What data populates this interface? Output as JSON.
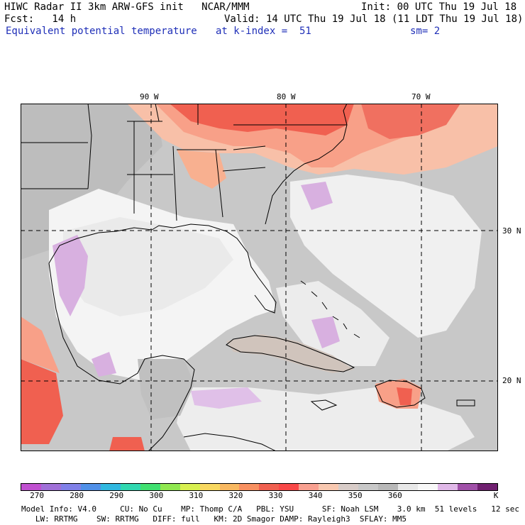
{
  "header": {
    "line1_left": "HIWC Radar II 3km ARW-GFS init   NCAR/MMM",
    "line1_right": "Init: 00 UTC Thu 19 Jul 18",
    "line2_left": "Fcst:   14 h",
    "line2_right": "Valid: 14 UTC Thu 19 Jul 18 (11 LDT Thu 19 Jul 18)",
    "field_name": "Equivalent potential temperature",
    "level": "at k-index =  51",
    "smoothing": "sm= 2"
  },
  "map": {
    "longitude_labels": [
      "90 W",
      "80 W",
      "70 W"
    ],
    "latitude_labels": [
      "30 N",
      "20 N"
    ]
  },
  "colorbar": {
    "colors": [
      "#c050d0",
      "#a070d8",
      "#8080e8",
      "#5090e8",
      "#30b8e0",
      "#30d8b0",
      "#40e070",
      "#90e850",
      "#d8f050",
      "#f8d860",
      "#f8b860",
      "#f89060",
      "#f06050",
      "#f84848",
      "#f8a090",
      "#f8c8b0",
      "#d8ccc8",
      "#c8c8c8",
      "#b8b8b8",
      "#e8e8e8",
      "#f8f8f8",
      "#e0b8e8",
      "#a050a8",
      "#702070"
    ],
    "tick_labels": [
      "270",
      "280",
      "290",
      "300",
      "310",
      "320",
      "330",
      "340",
      "350",
      "360",
      "K"
    ]
  },
  "footer": {
    "line1": "Model Info: V4.0     CU: No Cu    MP: Thomp C/A   PBL: YSU      SF: Noah LSM    3.0 km  51 levels   12 sec",
    "line2": "   LW: RRTMG    SW: RRTMG   DIFF: full   KM: 2D Smagor DAMP: Rayleigh3  SFLAY: MM5"
  }
}
